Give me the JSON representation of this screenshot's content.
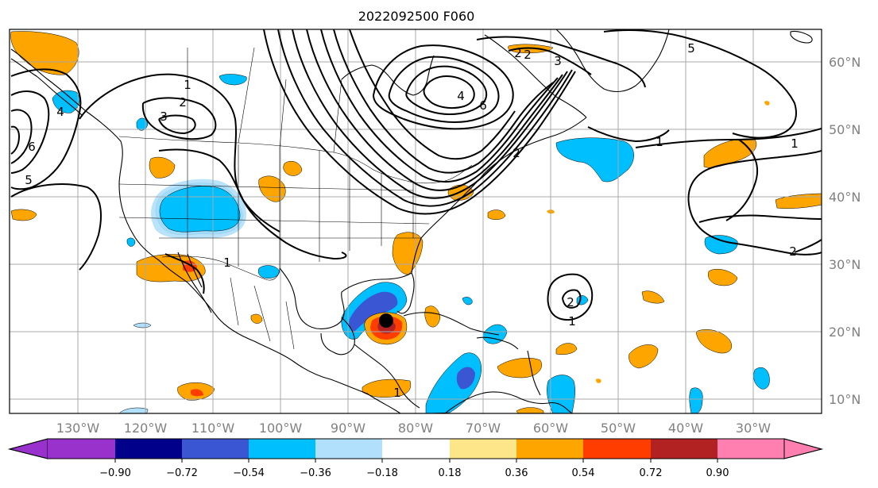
{
  "title": "2022092500 F060",
  "lon_labels": [
    "130°W",
    "120°W",
    "110°W",
    "100°W",
    "90°W",
    "80°W",
    "70°W",
    "60°W",
    "50°W",
    "40°W",
    "30°W"
  ],
  "lat_labels": [
    "60°N",
    "50°N",
    "40°N",
    "30°N",
    "20°N",
    "10°N"
  ],
  "colorbar": {
    "ticks": [
      "−0.90",
      "−0.72",
      "−0.54",
      "−0.36",
      "−0.18",
      "0.18",
      "0.36",
      "0.54",
      "0.72",
      "0.90"
    ],
    "colors": [
      "#9932cc",
      "#00008b",
      "#3a56d3",
      "#00bfff",
      "#b0e0fb",
      "#ffffff",
      "#fde68a",
      "#ffa500",
      "#ff3d00",
      "#b22222",
      "#ff80b0"
    ]
  },
  "contour_labels": [
    "1",
    "2",
    "1",
    "2",
    "3",
    "4",
    "5",
    "6",
    "3",
    "2",
    "5",
    "6",
    "4",
    "1",
    "1",
    "2",
    "1",
    "2",
    "2",
    "1"
  ],
  "storm_marker": "storm-center"
}
